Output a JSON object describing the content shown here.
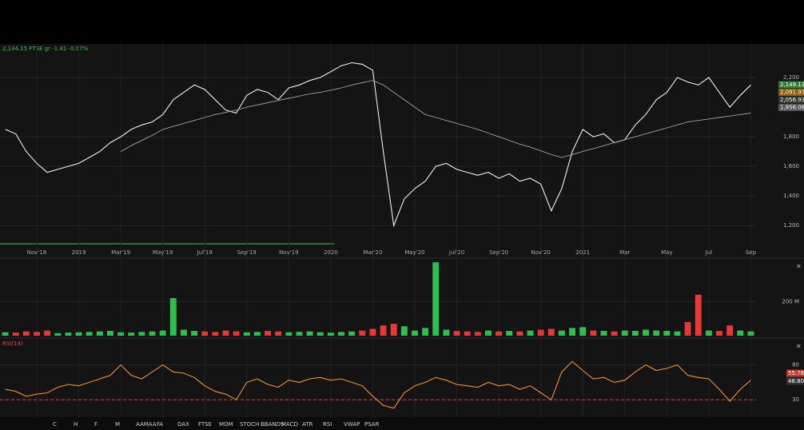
{
  "header": {
    "quote": "2,144.15 FTSE gr -1.41 -0.07%"
  },
  "chart_data": [
    {
      "type": "line",
      "categories": [
        null,
        null,
        null,
        "Nov'18",
        null,
        null,
        null,
        "2019",
        null,
        null,
        null,
        "Mar'19",
        null,
        null,
        null,
        "May'19",
        null,
        null,
        null,
        "Jul'19",
        null,
        null,
        null,
        "Sep'19",
        null,
        null,
        null,
        "Nov'19",
        null,
        null,
        null,
        "2020",
        null,
        null,
        null,
        "Mar'20",
        null,
        null,
        null,
        "May'20",
        null,
        null,
        null,
        "Jul'20",
        null,
        null,
        null,
        "Sep'20",
        null,
        null,
        null,
        "Nov'20",
        null,
        null,
        null,
        "2021",
        null,
        null,
        null,
        "Mar",
        null,
        null,
        null,
        "May",
        null,
        null,
        null,
        "Jul",
        null,
        null,
        null,
        "Sep"
      ],
      "series": [
        {
          "color": "#eeeeee",
          "values": [
            1850,
            1820,
            1700,
            1620,
            1560,
            1580,
            1600,
            1620,
            1660,
            1700,
            1760,
            1800,
            1850,
            1880,
            1900,
            1950,
            2050,
            2100,
            2150,
            2120,
            2050,
            1980,
            1960,
            2080,
            2120,
            2100,
            2050,
            2130,
            2150,
            2180,
            2200,
            2240,
            2280,
            2300,
            2290,
            2250,
            1700,
            1200,
            1380,
            1450,
            1500,
            1600,
            1620,
            1580,
            1560,
            1540,
            1560,
            1520,
            1550,
            1500,
            1520,
            1480,
            1300,
            1450,
            1700,
            1850,
            1800,
            1820,
            1760,
            1780,
            1880,
            1950,
            2050,
            2100,
            2200,
            2170,
            2150,
            2200,
            2100,
            2000,
            2080,
            2150
          ]
        },
        {
          "color": "#a0a0a0",
          "values": [
            null,
            null,
            null,
            null,
            null,
            null,
            null,
            null,
            null,
            null,
            null,
            1700,
            1740,
            1775,
            1810,
            1850,
            1870,
            1890,
            1910,
            1930,
            1950,
            1965,
            1980,
            2000,
            2015,
            2030,
            2045,
            2060,
            2075,
            2090,
            2100,
            2115,
            2130,
            2150,
            2165,
            2180,
            2150,
            2100,
            2050,
            2000,
            1950,
            1930,
            1910,
            1890,
            1870,
            1850,
            1825,
            1800,
            1775,
            1750,
            1730,
            1705,
            1680,
            1660,
            1680,
            1700,
            1720,
            1740,
            1760,
            1780,
            1800,
            1820,
            1840,
            1860,
            1880,
            1900,
            1910,
            1920,
            1930,
            1940,
            1950,
            1960
          ]
        }
      ],
      "ylim": [
        1050,
        2400
      ],
      "yticks": [
        {
          "value": 2200,
          "label": "2,200"
        },
        {
          "value": 1800,
          "label": "1,800"
        },
        {
          "value": 1600,
          "label": "1,600"
        },
        {
          "value": 1400,
          "label": "1,400"
        },
        {
          "value": 1200,
          "label": "1,200"
        }
      ],
      "price_tags": [
        {
          "label": "2,149.13",
          "color": "#2e7d32"
        },
        {
          "label": "2,091.97",
          "color": "#8d5a12"
        },
        {
          "label": "2,056.93",
          "color": "#333333"
        },
        {
          "label": "1,956.08",
          "color": "#555555"
        }
      ]
    },
    {
      "type": "bar",
      "values": [
        20,
        18,
        25,
        22,
        30,
        15,
        18,
        20,
        22,
        25,
        28,
        20,
        18,
        22,
        25,
        30,
        220,
        35,
        28,
        25,
        22,
        30,
        25,
        20,
        22,
        28,
        25,
        20,
        22,
        25,
        20,
        18,
        22,
        25,
        30,
        40,
        60,
        70,
        55,
        30,
        45,
        430,
        35,
        28,
        25,
        22,
        30,
        25,
        28,
        25,
        30,
        35,
        40,
        30,
        45,
        50,
        30,
        28,
        25,
        30,
        28,
        35,
        30,
        28,
        25,
        80,
        240,
        30,
        28,
        60,
        30,
        25
      ],
      "up_color": "#2fbf4f",
      "down_color": "#e53935",
      "ylim": [
        0,
        440
      ],
      "yticks": [
        {
          "value": 200,
          "label": "200 M"
        }
      ]
    },
    {
      "type": "line",
      "title": "RSI(14)",
      "series": [
        {
          "color": "#f0902c",
          "values": [
            45,
            42,
            35,
            38,
            40,
            48,
            52,
            50,
            55,
            60,
            65,
            80,
            65,
            60,
            70,
            80,
            70,
            68,
            62,
            50,
            42,
            38,
            30,
            55,
            60,
            52,
            48,
            58,
            55,
            60,
            62,
            58,
            60,
            55,
            50,
            35,
            22,
            18,
            40,
            50,
            55,
            62,
            58,
            52,
            50,
            48,
            55,
            50,
            52,
            45,
            50,
            40,
            30,
            70,
            85,
            72,
            60,
            62,
            55,
            58,
            70,
            80,
            72,
            75,
            80,
            65,
            62,
            60,
            45,
            28,
            45,
            58
          ]
        }
      ],
      "ylim": [
        5,
        115
      ],
      "yticks": [
        80,
        30
      ],
      "reference_line": 30,
      "reference_color": "#e53935",
      "value_tags": [
        "55.78",
        "48.80"
      ]
    }
  ],
  "toolbar": [
    "C",
    "H",
    "F",
    "M",
    "AAMAA",
    "FA",
    "DAX",
    "FTSE",
    "MOM",
    "STOCH",
    "BBANDS",
    "MACD",
    "ATR",
    "RSI",
    "VWAP",
    "PSAR"
  ]
}
